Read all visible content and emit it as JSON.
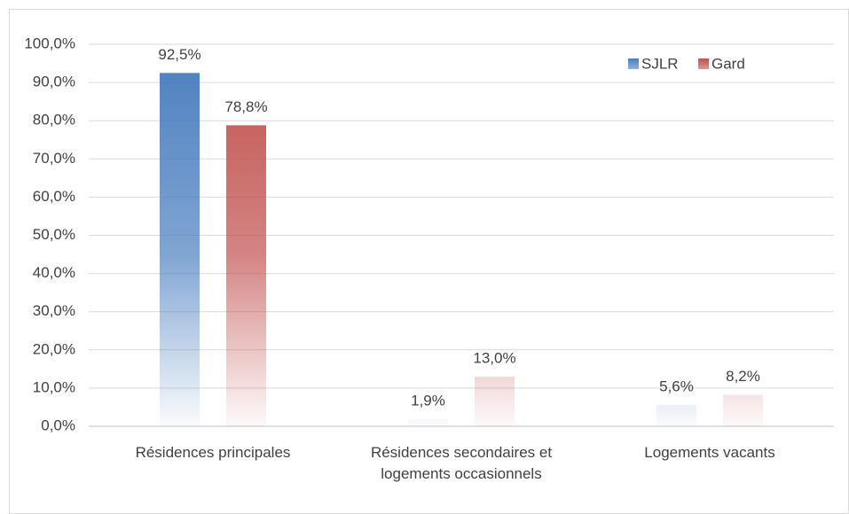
{
  "chart_data": {
    "type": "bar",
    "categories": [
      "Résidences principales",
      "Résidences secondaires et logements occasionnels",
      "Logements vacants"
    ],
    "series": [
      {
        "name": "SJLR",
        "color": "#4a7ebf",
        "values": [
          92.5,
          1.9,
          5.6
        ],
        "value_labels": [
          "92,5%",
          "1,9%",
          "5,6%"
        ]
      },
      {
        "name": "Gard",
        "color": "#c0504d",
        "values": [
          78.8,
          13.0,
          8.2
        ],
        "value_labels": [
          "78,8%",
          "13,0%",
          "8,2%"
        ]
      }
    ],
    "ylim": [
      0,
      100
    ],
    "yticks": [
      {
        "value": 0,
        "label": "0,0%"
      },
      {
        "value": 10,
        "label": "10,0%"
      },
      {
        "value": 20,
        "label": "20,0%"
      },
      {
        "value": 30,
        "label": "30,0%"
      },
      {
        "value": 40,
        "label": "40,0%"
      },
      {
        "value": 50,
        "label": "50,0%"
      },
      {
        "value": 60,
        "label": "60,0%"
      },
      {
        "value": 70,
        "label": "70,0%"
      },
      {
        "value": 80,
        "label": "80,0%"
      },
      {
        "value": 90,
        "label": "90,0%"
      },
      {
        "value": 100,
        "label": "100,0%"
      }
    ],
    "grid": true,
    "legend": "top-right"
  }
}
